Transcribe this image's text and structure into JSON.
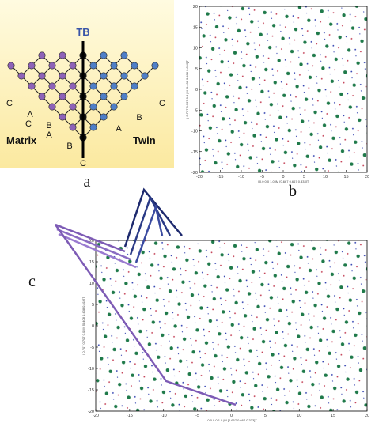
{
  "panel_a": {
    "label": "a",
    "boundary": "TB",
    "left": "Matrix",
    "right": "Twin",
    "left_stacking": [
      "C",
      "A",
      "B",
      "C",
      "A",
      "B"
    ],
    "bottom_stacking": "C",
    "right_stacking": [
      "A",
      "B",
      "C"
    ]
  },
  "panel_b": {
    "label": "b",
    "x_axis_label": "| 0.0 0.0 1.0 |M  [0.667 0.667 0.333]T",
    "y_axis_label": "| 0.707 0.707 0.0 |M  [0.408 0.408 0.816]T",
    "xticks": [
      -20,
      -15,
      -10,
      -5,
      0,
      5,
      10,
      15,
      20
    ],
    "yticks": [
      -20,
      -15,
      -10,
      -5,
      0,
      5,
      10,
      15,
      20
    ]
  },
  "panel_c": {
    "label": "c",
    "x_axis_label": "| 0.0 0.0 1.0 |M  [0.667 0.667 0.333]T",
    "y_axis_label": "| 0.707 0.707 0.0 |M  [0.408 0.408 0.816]T",
    "xticks": [
      -20,
      -15,
      -10,
      -5,
      0,
      5,
      10,
      15,
      20
    ],
    "yticks": [
      -20,
      -15,
      -10,
      -5,
      0,
      5,
      10,
      15,
      20
    ]
  }
}
